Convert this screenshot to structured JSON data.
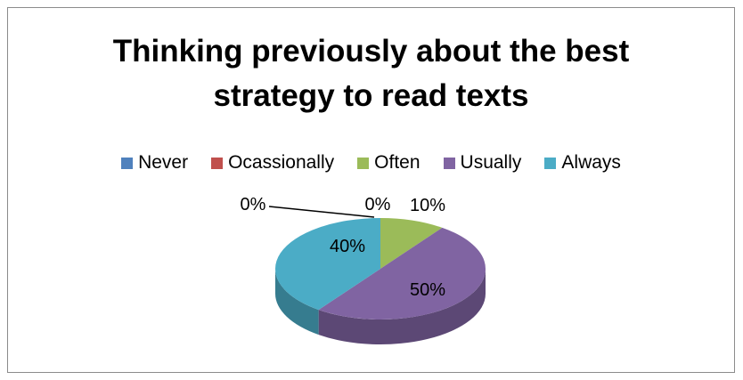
{
  "chart_data": {
    "type": "pie",
    "title": "Thinking previously about the best strategy to read texts",
    "title_lines": [
      "Thinking previously about the best",
      "strategy to read texts"
    ],
    "legend_position": "top",
    "categories": [
      "Never",
      "Ocassionally",
      "Often",
      "Usually",
      "Always"
    ],
    "values": [
      0,
      0,
      10,
      50,
      40
    ],
    "data_labels": [
      "0%",
      "0%",
      "10%",
      "50%",
      "40%"
    ],
    "colors": [
      "#4F81BD",
      "#C0504D",
      "#9BBB59",
      "#8064A2",
      "#4BACC6"
    ]
  }
}
